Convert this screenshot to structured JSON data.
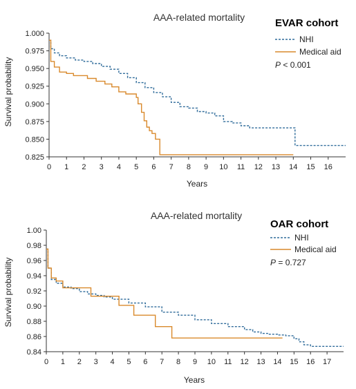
{
  "colors": {
    "nhi": "#2f6b9a",
    "medical_aid": "#d9892b",
    "axis": "#333333"
  },
  "chart_data": [
    {
      "type": "line",
      "title": "AAA-related mortality",
      "cohort_label": "EVAR cohort",
      "xlabel": "Years",
      "ylabel": "Survival probability",
      "p_label": "P",
      "p_text": " < 0.001",
      "xlim": [
        0,
        17
      ],
      "ylim": [
        0.825,
        1.0
      ],
      "xticks": [
        "0",
        "1",
        "2",
        "3",
        "4",
        "5",
        "6",
        "7",
        "8",
        "9",
        "10",
        "11",
        "12",
        "13",
        "14",
        "15",
        "16"
      ],
      "yticks": [
        "1.000",
        "0.975",
        "0.950",
        "0.925",
        "0.900",
        "0.875",
        "0.850",
        "0.825"
      ],
      "legend_position": "top-right",
      "series": [
        {
          "name": "NHI",
          "style": "dashed",
          "color": "#2f6b9a",
          "x": [
            0,
            0.1,
            0.3,
            0.6,
            1,
            1.5,
            2,
            2.5,
            3,
            3.5,
            4,
            4.5,
            5,
            5.5,
            6,
            6.5,
            7,
            7.5,
            8,
            8.5,
            9,
            9.5,
            10,
            10.5,
            11,
            11.5,
            12,
            13,
            14,
            14.1,
            17
          ],
          "y": [
            0.99,
            0.978,
            0.972,
            0.968,
            0.965,
            0.962,
            0.96,
            0.957,
            0.953,
            0.949,
            0.943,
            0.937,
            0.93,
            0.923,
            0.916,
            0.91,
            0.902,
            0.896,
            0.894,
            0.889,
            0.887,
            0.883,
            0.875,
            0.873,
            0.869,
            0.866,
            0.866,
            0.866,
            0.866,
            0.841,
            0.841
          ]
        },
        {
          "name": "Medical aid",
          "style": "solid",
          "color": "#d9892b",
          "x": [
            0,
            0.1,
            0.3,
            0.6,
            1,
            1.4,
            2.2,
            2.7,
            3.2,
            3.6,
            4.0,
            4.4,
            5.0,
            5.1,
            5.3,
            5.45,
            5.6,
            5.75,
            5.9,
            6.1,
            6.35,
            14
          ],
          "y": [
            0.99,
            0.96,
            0.952,
            0.945,
            0.943,
            0.94,
            0.936,
            0.932,
            0.928,
            0.924,
            0.917,
            0.914,
            0.909,
            0.9,
            0.888,
            0.876,
            0.867,
            0.862,
            0.858,
            0.85,
            0.828,
            0.828
          ]
        }
      ]
    },
    {
      "type": "line",
      "title": "AAA-related mortality",
      "cohort_label": "OAR cohort",
      "xlabel": "Years",
      "ylabel": "Survival probability",
      "p_label": "P",
      "p_text": " = 0.727",
      "xlim": [
        0,
        18
      ],
      "ylim": [
        0.84,
        1.0
      ],
      "xticks": [
        "0",
        "1",
        "2",
        "3",
        "4",
        "5",
        "6",
        "7",
        "8",
        "9",
        "10",
        "11",
        "12",
        "13",
        "14",
        "15",
        "16",
        "17"
      ],
      "yticks": [
        "1.00",
        "0.98",
        "0.96",
        "0.94",
        "0.92",
        "0.90",
        "0.88",
        "0.86",
        "0.84"
      ],
      "legend_position": "top-right",
      "series": [
        {
          "name": "NHI",
          "style": "dashed",
          "color": "#2f6b9a",
          "x": [
            0,
            0.1,
            0.3,
            0.6,
            1,
            1.5,
            2,
            2.5,
            3,
            3.5,
            4,
            5,
            6,
            7,
            8,
            9,
            10,
            11,
            12,
            12.5,
            13,
            13.5,
            14,
            14.5,
            15,
            15.3,
            15.6,
            16,
            17,
            18
          ],
          "y": [
            0.975,
            0.95,
            0.935,
            0.93,
            0.925,
            0.923,
            0.919,
            0.916,
            0.914,
            0.912,
            0.909,
            0.904,
            0.899,
            0.892,
            0.888,
            0.882,
            0.877,
            0.873,
            0.869,
            0.866,
            0.864,
            0.863,
            0.862,
            0.861,
            0.857,
            0.853,
            0.849,
            0.847,
            0.847,
            0.847
          ]
        },
        {
          "name": "Medical aid",
          "style": "solid",
          "color": "#d9892b",
          "x": [
            0,
            0.1,
            0.3,
            0.6,
            0.9,
            1.0,
            2.0,
            2.7,
            3.5,
            4.4,
            5.3,
            6.6,
            7.6,
            14.3
          ],
          "y": [
            0.975,
            0.95,
            0.937,
            0.933,
            0.933,
            0.924,
            0.924,
            0.913,
            0.913,
            0.901,
            0.888,
            0.873,
            0.858,
            0.858
          ]
        }
      ]
    }
  ]
}
